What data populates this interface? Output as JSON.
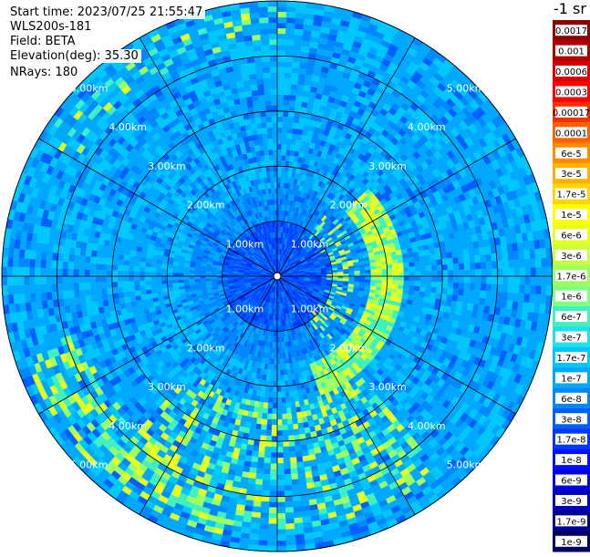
{
  "info": {
    "start_time": "Start time: 2023/07/25 21:55:47",
    "station": "WLS200s-181",
    "field": "Field: BETA",
    "elevation": "Elevation(deg): 35.30",
    "nrays": "NRays: 180"
  },
  "chart_data": {
    "type": "heatmap",
    "projection": "polar",
    "nrays": 180,
    "range_rings_km": [
      1,
      2,
      3,
      4,
      5
    ],
    "max_range_km": 5.0,
    "radial_lines": 12,
    "range_labels": [
      "1.00km",
      "2.00km",
      "3.00km",
      "4.00km",
      "5.00km"
    ],
    "gridlines": true,
    "legend": {
      "title": "-1 sr",
      "placement": "right",
      "ticks": [
        "0.0017",
        "0.001",
        "0.0006",
        "0.0003",
        "0.00017",
        "0.0001",
        "6e-5",
        "3e-5",
        "1.7e-5",
        "1e-5",
        "6e-6",
        "3e-6",
        "1.7e-6",
        "1e-6",
        "6e-7",
        "3e-7",
        "1.7e-7",
        "1e-7",
        "6e-8",
        "3e-8",
        "1.7e-8",
        "1e-8",
        "6e-9",
        "3e-9",
        "1.7e-9",
        "1e-9"
      ],
      "colors": [
        "#8b0000",
        "#b00000",
        "#d80000",
        "#ff0000",
        "#ff3000",
        "#ff6000",
        "#ff8c00",
        "#ffb000",
        "#ffd400",
        "#ffff00",
        "#e4ff20",
        "#c8ff40",
        "#a0ff60",
        "#80ff80",
        "#40f0c0",
        "#20e0e8",
        "#00c8ff",
        "#00a8ff",
        "#0088ff",
        "#0060ff",
        "#0038ff",
        "#0010ff",
        "#0000e0",
        "#0000b8",
        "#000090",
        "#000060"
      ]
    },
    "field_description": {
      "background_level": "1e-7",
      "inner_disk_level": "3e-8",
      "enhanced_ring_levels": [
        "6e-6",
        "1.7e-6",
        "6e-7"
      ],
      "enhanced_ring_range_km": [
        1.6,
        4.6
      ]
    }
  }
}
